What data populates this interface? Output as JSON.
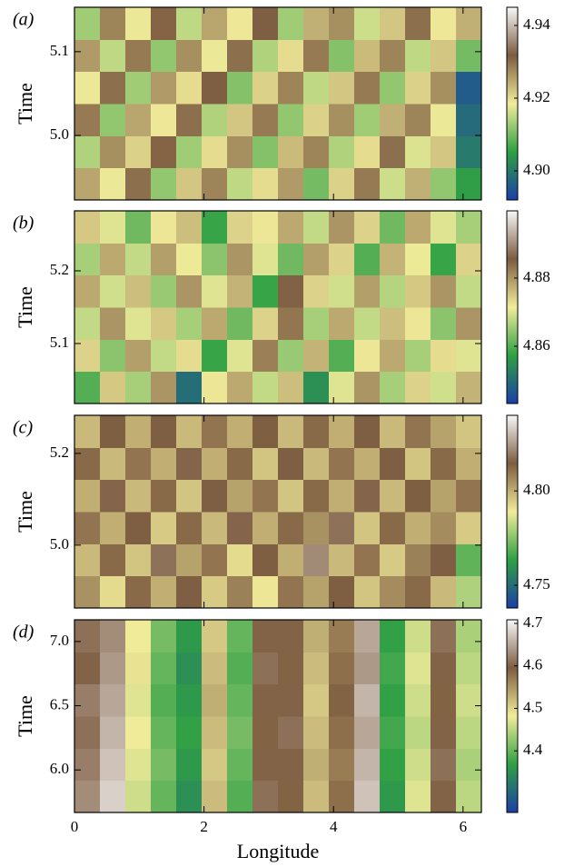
{
  "chart_data": [
    {
      "type": "heatmap",
      "label": "(a)",
      "ylabel": "Time",
      "xlim": [
        0,
        6.283
      ],
      "xticks": [
        0,
        2,
        4,
        6
      ],
      "ylim": [
        4.923,
        5.153
      ],
      "yticks": [
        {
          "value": 5.0,
          "label": "5.0"
        },
        5.1
      ],
      "clim": [
        4.892,
        4.945
      ],
      "cticks": [
        {
          "value": 4.9,
          "label": "4.90"
        },
        4.92,
        4.94
      ],
      "colormap": [
        "#1c3fa8",
        "#2fa044",
        "#f2ec9a",
        "#7d5c40",
        "#f7f7f7"
      ],
      "z": [
        [
          4.925,
          4.918,
          4.93,
          4.912,
          4.922,
          4.928,
          4.915,
          4.92,
          4.926,
          4.91,
          4.921,
          4.929,
          4.916,
          4.924,
          4.912,
          4.905
        ],
        [
          4.914,
          4.927,
          4.921,
          4.931,
          4.913,
          4.92,
          4.927,
          4.911,
          4.923,
          4.928,
          4.914,
          4.92,
          4.93,
          4.917,
          4.922,
          4.9
        ],
        [
          4.929,
          4.912,
          4.925,
          4.919,
          4.93,
          4.914,
          4.922,
          4.929,
          4.912,
          4.921,
          4.927,
          4.913,
          4.924,
          4.928,
          4.918,
          4.898
        ],
        [
          4.918,
          4.93,
          4.913,
          4.926,
          4.92,
          4.932,
          4.911,
          4.921,
          4.928,
          4.915,
          4.922,
          4.929,
          4.912,
          4.921,
          4.927,
          4.896
        ],
        [
          4.926,
          4.915,
          4.929,
          4.912,
          4.927,
          4.918,
          4.93,
          4.914,
          4.92,
          4.929,
          4.911,
          4.923,
          4.928,
          4.915,
          4.922,
          4.91
        ],
        [
          4.913,
          4.928,
          4.918,
          4.931,
          4.915,
          4.925,
          4.919,
          4.932,
          4.913,
          4.924,
          4.927,
          4.916,
          4.922,
          4.93,
          4.919,
          4.924
        ]
      ]
    },
    {
      "type": "heatmap",
      "label": "(b)",
      "ylabel": "Time",
      "xlim": [
        0,
        6.283
      ],
      "xticks": [
        0,
        2,
        4,
        6
      ],
      "ylim": [
        5.0175,
        5.2825
      ],
      "yticks": [
        5.1,
        5.2
      ],
      "clim": [
        4.8432,
        4.8997
      ],
      "cticks": [
        4.86,
        4.88
      ],
      "colormap": [
        "#1c3fa8",
        "#2fa044",
        "#f2ec9a",
        "#7d5c40",
        "#f7f7f7"
      ],
      "z": [
        [
          4.86,
          4.875,
          4.866,
          4.88,
          4.85,
          4.872,
          4.878,
          4.868,
          4.876,
          4.855,
          4.87,
          4.88,
          4.866,
          4.874,
          4.869,
          4.877
        ],
        [
          4.874,
          4.864,
          4.879,
          4.868,
          4.873,
          4.858,
          4.87,
          4.882,
          4.865,
          4.877,
          4.86,
          4.872,
          4.878,
          4.866,
          4.873,
          4.87
        ],
        [
          4.868,
          4.88,
          4.87,
          4.875,
          4.866,
          4.878,
          4.862,
          4.874,
          4.883,
          4.866,
          4.878,
          4.868,
          4.876,
          4.872,
          4.864,
          4.88
        ],
        [
          4.878,
          4.869,
          4.876,
          4.865,
          4.88,
          4.87,
          4.877,
          4.858,
          4.885,
          4.874,
          4.869,
          4.879,
          4.867,
          4.875,
          4.88,
          4.868
        ],
        [
          4.866,
          4.878,
          4.868,
          4.879,
          4.871,
          4.864,
          4.88,
          4.87,
          4.862,
          4.879,
          4.874,
          4.86,
          4.877,
          4.871,
          4.858,
          4.874
        ],
        [
          4.875,
          4.87,
          4.862,
          4.872,
          4.876,
          4.858,
          4.874,
          4.872,
          4.878,
          4.868,
          4.88,
          4.874,
          4.862,
          4.878,
          4.87,
          4.866
        ]
      ]
    },
    {
      "type": "heatmap",
      "label": "(c)",
      "ylabel": "Time",
      "xlim": [
        0,
        6.283
      ],
      "xticks": [
        0,
        2,
        4,
        6
      ],
      "ylim": [
        4.863,
        5.283
      ],
      "yticks": [
        {
          "value": 5.0,
          "label": "5.0"
        },
        5.2
      ],
      "clim": [
        4.738,
        4.84
      ],
      "cticks": [
        4.75,
        {
          "value": 4.8,
          "label": "4.80"
        }
      ],
      "colormap": [
        "#1c3fa8",
        "#2fa044",
        "#f2ec9a",
        "#7d5c40",
        "#f7f7f7"
      ],
      "z": [
        [
          4.805,
          4.792,
          4.812,
          4.8,
          4.815,
          4.795,
          4.808,
          4.79,
          4.81,
          4.802,
          4.814,
          4.796,
          4.806,
          4.812,
          4.798,
          4.78
        ],
        [
          4.798,
          4.812,
          4.796,
          4.818,
          4.802,
          4.81,
          4.792,
          4.814,
          4.8,
          4.822,
          4.798,
          4.81,
          4.795,
          4.808,
          4.815,
          4.77
        ],
        [
          4.81,
          4.8,
          4.815,
          4.795,
          4.812,
          4.798,
          4.816,
          4.8,
          4.812,
          4.805,
          4.818,
          4.796,
          4.812,
          4.8,
          4.806,
          4.795
        ],
        [
          4.8,
          4.816,
          4.798,
          4.812,
          4.796,
          4.815,
          4.802,
          4.81,
          4.796,
          4.812,
          4.8,
          4.816,
          4.798,
          4.814,
          4.802,
          4.81
        ],
        [
          4.812,
          4.798,
          4.81,
          4.8,
          4.816,
          4.8,
          4.812,
          4.796,
          4.815,
          4.798,
          4.81,
          4.8,
          4.815,
          4.796,
          4.812,
          4.8
        ],
        [
          4.798,
          4.814,
          4.8,
          4.815,
          4.798,
          4.81,
          4.8,
          4.814,
          4.798,
          4.812,
          4.8,
          4.815,
          4.798,
          4.81,
          4.802,
          4.796
        ]
      ]
    },
    {
      "type": "heatmap",
      "label": "(d)",
      "ylabel": "Time",
      "xlabel": "Longitude",
      "xlim": [
        0,
        6.283
      ],
      "xticks": [
        0,
        2,
        4,
        6
      ],
      "ylim": [
        5.669,
        7.169
      ],
      "yticks": [
        {
          "value": 6.0,
          "label": "6.0"
        },
        6.5,
        {
          "value": 7.0,
          "label": "7.0"
        }
      ],
      "clim": [
        4.255,
        4.7085
      ],
      "cticks": [
        4.4,
        4.5,
        4.6,
        4.7
      ],
      "colormap": [
        "#1c3fa8",
        "#2fa044",
        "#f2ec9a",
        "#7d5c40",
        "#f7f7f7"
      ],
      "z": [
        [
          4.63,
          4.68,
          4.46,
          4.4,
          4.35,
          4.52,
          4.39,
          4.61,
          4.59,
          4.52,
          4.58,
          4.67,
          4.36,
          4.47,
          4.6,
          4.45
        ],
        [
          4.62,
          4.67,
          4.47,
          4.41,
          4.36,
          4.51,
          4.4,
          4.6,
          4.6,
          4.53,
          4.57,
          4.66,
          4.37,
          4.46,
          4.61,
          4.44
        ],
        [
          4.61,
          4.66,
          4.48,
          4.4,
          4.37,
          4.52,
          4.41,
          4.59,
          4.61,
          4.52,
          4.58,
          4.65,
          4.38,
          4.45,
          4.6,
          4.45
        ],
        [
          4.62,
          4.65,
          4.47,
          4.39,
          4.36,
          4.53,
          4.4,
          4.6,
          4.6,
          4.51,
          4.59,
          4.66,
          4.37,
          4.46,
          4.59,
          4.46
        ],
        [
          4.6,
          4.64,
          4.49,
          4.4,
          4.35,
          4.52,
          4.39,
          4.61,
          4.59,
          4.52,
          4.58,
          4.64,
          4.38,
          4.47,
          4.6,
          4.45
        ],
        [
          4.61,
          4.63,
          4.48,
          4.41,
          4.36,
          4.51,
          4.4,
          4.6,
          4.6,
          4.53,
          4.57,
          4.65,
          4.37,
          4.46,
          4.61,
          4.44
        ]
      ]
    }
  ]
}
